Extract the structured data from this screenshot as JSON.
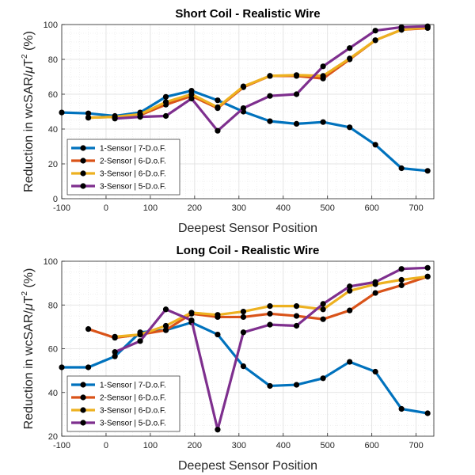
{
  "chart_data": [
    {
      "type": "line",
      "title": "Short Coil - Realistic Wire",
      "xlabel": "Deepest Sensor Position",
      "ylabel_main": "Reduction in wcSAR/",
      "ylabel_mu": "μ",
      "ylabel_T": "T",
      "ylabel_sup": "2",
      "ylabel_end": " (%)",
      "xlim": [
        -100,
        740
      ],
      "ylim": [
        0,
        100
      ],
      "xticks": [
        "-100",
        "0",
        "100",
        "200",
        "300",
        "400",
        "500",
        "600",
        "700"
      ],
      "yticks": [
        "0",
        "20",
        "40",
        "60",
        "80",
        "100"
      ],
      "grid": true,
      "legend_position": "bottom-left",
      "series": [
        {
          "name": "1-Sensor | 7-D.o.F.",
          "color": "#0072BD",
          "x": [
            -100,
            -40,
            20,
            77,
            135,
            193,
            252,
            310,
            370,
            430,
            490,
            550,
            608,
            667,
            726
          ],
          "y": [
            49.5,
            49,
            47.5,
            49.5,
            58.5,
            62,
            56.5,
            50,
            44.5,
            43,
            44,
            41,
            31,
            17.5,
            16
          ]
        },
        {
          "name": "2-Sensor | 6-D.o.F.",
          "color": "#D95319",
          "x": [
            -40,
            20,
            77,
            135,
            193,
            252,
            310,
            370,
            430,
            490,
            550,
            608,
            667,
            726
          ],
          "y": [
            46.5,
            47,
            48,
            54,
            59,
            52,
            64,
            70.5,
            70.5,
            69,
            80,
            91,
            97,
            98
          ]
        },
        {
          "name": "3-Sensor | 6-D.o.F.",
          "color": "#EDB120",
          "x": [
            -40,
            20,
            77,
            135,
            193,
            252,
            310,
            370,
            430,
            490,
            550,
            608,
            667,
            726
          ],
          "y": [
            46.5,
            47,
            48.5,
            55.5,
            60,
            52.5,
            64.5,
            70.5,
            71,
            70.5,
            80.5,
            91,
            97,
            98.5
          ]
        },
        {
          "name": "3-Sensor | 5-D.o.F.",
          "color": "#7E2F8E",
          "x": [
            20,
            77,
            135,
            193,
            252,
            310,
            370,
            430,
            490,
            550,
            608,
            667,
            726
          ],
          "y": [
            46,
            47,
            47.5,
            57.5,
            39,
            52,
            59,
            60,
            76,
            86.5,
            96.5,
            98.5,
            99
          ]
        }
      ]
    },
    {
      "type": "line",
      "title": "Long Coil - Realistic Wire",
      "xlabel": "Deepest Sensor Position",
      "ylabel_main": "Reduction in wcSAR/",
      "ylabel_mu": "μ",
      "ylabel_T": "T",
      "ylabel_sup": "2",
      "ylabel_end": " (%)",
      "xlim": [
        -100,
        740
      ],
      "ylim": [
        20,
        100
      ],
      "xticks": [
        "-100",
        "0",
        "100",
        "200",
        "300",
        "400",
        "500",
        "600",
        "700"
      ],
      "yticks": [
        "20",
        "40",
        "60",
        "80",
        "100"
      ],
      "grid": true,
      "legend_position": "bottom-left",
      "series": [
        {
          "name": "1-Sensor | 7-D.o.F.",
          "color": "#0072BD",
          "x": [
            -100,
            -40,
            20,
            77,
            135,
            193,
            252,
            310,
            370,
            430,
            490,
            550,
            608,
            667,
            726
          ],
          "y": [
            51.5,
            51.5,
            56.5,
            67.5,
            68.5,
            72,
            66.5,
            52,
            43,
            43.5,
            46.5,
            54,
            49.5,
            32.5,
            30.5
          ]
        },
        {
          "name": "2-Sensor | 6-D.o.F.",
          "color": "#D95319",
          "x": [
            -40,
            20,
            77,
            135,
            193,
            252,
            310,
            370,
            430,
            490,
            550,
            608,
            667,
            726
          ],
          "y": [
            69,
            65,
            66.5,
            68.5,
            76,
            74.5,
            74.5,
            76,
            75,
            73.5,
            77.5,
            85.5,
            89,
            93
          ]
        },
        {
          "name": "3-Sensor | 6-D.o.F.",
          "color": "#EDB120",
          "x": [
            20,
            77,
            135,
            193,
            252,
            310,
            370,
            430,
            490,
            550,
            608,
            667,
            726
          ],
          "y": [
            65.5,
            66.5,
            70.5,
            76.5,
            75.5,
            77,
            79.5,
            79.5,
            78,
            86.5,
            89.5,
            91.5,
            93
          ]
        },
        {
          "name": "3-Sensor | 5-D.o.F.",
          "color": "#7E2F8E",
          "x": [
            20,
            77,
            135,
            193,
            252,
            310,
            370,
            430,
            490,
            550,
            608,
            667,
            726
          ],
          "y": [
            58.5,
            63.5,
            78,
            73,
            23,
            67.5,
            71,
            70.5,
            80.5,
            88.5,
            90.5,
            96.5,
            97
          ]
        }
      ]
    }
  ]
}
